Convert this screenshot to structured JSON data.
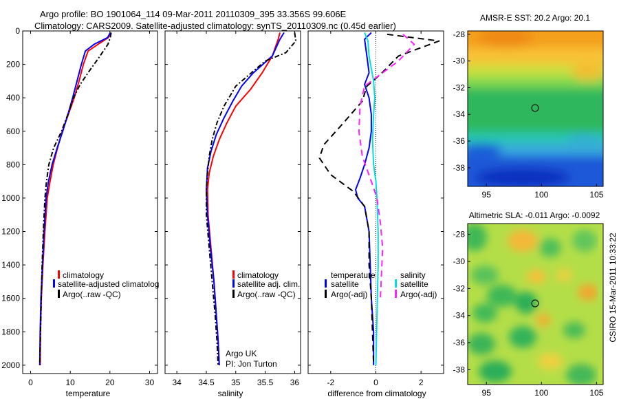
{
  "header": {
    "line1": "Argo profile: BO 1901064_114 09-Mar-2011 20110309_395 33.356S 99.606E",
    "line2": "Climatology: CARS2009. Satellite-adjusted climatology: synTS_20110309.nc (0.45d earlier)"
  },
  "credit": {
    "stamp": "CSIRO 15-Mar-2011 10:33:22",
    "argo_line1": "Argo UK",
    "argo_line2": "PI: Jon Turton"
  },
  "colors": {
    "climatology": "#ff0000",
    "satellite": "#0000ff",
    "argo": "#000000",
    "sat_salinity": "#00e0e0",
    "argo_salinity": "#ff22ff"
  },
  "chart_data": [
    {
      "id": "temperature",
      "type": "line",
      "xlabel": "temperature",
      "ylabel": "",
      "xlim": [
        -2,
        32
      ],
      "ylim": [
        0,
        2050
      ],
      "xticks": [
        0,
        10,
        20,
        30
      ],
      "yticks": [
        0,
        200,
        400,
        600,
        800,
        1000,
        1200,
        1400,
        1600,
        1800,
        2000
      ],
      "legend": [
        "climatology",
        "satellite-adjusted climatolog",
        "Argo(..raw -QC)"
      ],
      "series": [
        {
          "name": "climatology",
          "color": "#ff0000",
          "dash": "",
          "x": [
            20.2,
            19.6,
            17,
            14.5,
            13.3,
            12.2,
            11,
            9.5,
            8,
            6.8,
            5.7,
            4.9,
            4.2,
            3.6,
            3.1,
            2.7,
            2.5,
            2.4
          ],
          "y": [
            10,
            40,
            80,
            120,
            200,
            300,
            400,
            500,
            600,
            700,
            800,
            900,
            1000,
            1200,
            1400,
            1600,
            1800,
            2000
          ]
        },
        {
          "name": "satellite-adjusted climatolog",
          "color": "#0000ff",
          "dash": "",
          "x": [
            20.1,
            19.4,
            16,
            13.8,
            12.8,
            11.7,
            10.6,
            9.4,
            8.1,
            6.7,
            5.4,
            4.5,
            3.9,
            3.4,
            3.0,
            2.6,
            2.4,
            2.3
          ],
          "y": [
            10,
            40,
            80,
            120,
            200,
            300,
            400,
            500,
            600,
            700,
            800,
            900,
            1000,
            1200,
            1400,
            1600,
            1800,
            2000
          ]
        },
        {
          "name": "Argo(..raw -QC)",
          "color": "#000000",
          "dash": "7,3,2,3",
          "x": [
            20.3,
            20.1,
            19.5,
            17.5,
            14.5,
            12.5,
            10.8,
            9.7,
            7.8,
            5.8,
            4.6,
            4.0,
            3.6,
            3.2,
            2.9,
            2.5,
            2.3
          ],
          "y": [
            10,
            40,
            80,
            150,
            250,
            320,
            400,
            480,
            600,
            700,
            800,
            900,
            1000,
            1200,
            1400,
            1800,
            2000
          ]
        }
      ]
    },
    {
      "id": "salinity",
      "type": "line",
      "xlabel": "salinity",
      "xlim": [
        33.8,
        36.1
      ],
      "ylim": [
        0,
        2050
      ],
      "xticks": [
        34,
        34.5,
        35,
        35.5,
        36
      ],
      "legend": [
        "climatology",
        "satellite adj. clim.",
        "Argo(..raw -QC)"
      ],
      "series": [
        {
          "name": "climatology",
          "color": "#ff0000",
          "dash": "",
          "x": [
            35.75,
            35.72,
            35.62,
            35.45,
            35.25,
            35.0,
            34.85,
            34.72,
            34.62,
            34.55,
            34.52,
            34.53,
            34.58,
            34.63,
            34.67,
            34.7,
            34.72
          ],
          "y": [
            10,
            50,
            150,
            250,
            350,
            450,
            550,
            650,
            750,
            850,
            950,
            1100,
            1300,
            1500,
            1700,
            1850,
            2000
          ]
        },
        {
          "name": "satellite adj. clim.",
          "color": "#0000ff",
          "dash": "",
          "x": [
            35.82,
            35.75,
            35.62,
            35.3,
            35.1,
            34.95,
            34.8,
            34.67,
            34.58,
            34.52,
            34.5,
            34.52,
            34.57,
            34.63,
            34.67,
            34.7,
            34.72
          ],
          "y": [
            10,
            50,
            150,
            250,
            330,
            420,
            520,
            620,
            720,
            820,
            950,
            1100,
            1300,
            1500,
            1700,
            1850,
            2000
          ]
        },
        {
          "name": "Argo(..raw -QC)",
          "color": "#000000",
          "dash": "7,3,2,3",
          "x": [
            36.0,
            36.02,
            35.85,
            35.5,
            35.0,
            34.8,
            34.68,
            34.6,
            34.55,
            34.52,
            34.5,
            34.5,
            34.55,
            34.6,
            34.65,
            34.68,
            34.7
          ],
          "y": [
            10,
            60,
            130,
            180,
            330,
            450,
            550,
            650,
            750,
            850,
            950,
            1100,
            1300,
            1500,
            1700,
            1850,
            2000
          ]
        }
      ]
    },
    {
      "id": "difference",
      "type": "line",
      "xlabel": "difference from climatology",
      "xlim": [
        -3,
        3
      ],
      "ylim": [
        0,
        2050
      ],
      "xticks": [
        -2,
        0,
        2
      ],
      "legend_headers": [
        "temperature",
        "salinity"
      ],
      "legend": [
        "satellite",
        "Argo(-adj)",
        "satellite",
        "Argo(-adj)"
      ],
      "series": [
        {
          "name": "temperature satellite",
          "color": "#0000ff",
          "dash": "",
          "x": [
            -0.2,
            -0.5,
            -0.4,
            -0.3,
            -0.5,
            -0.3,
            -0.2,
            -0.2,
            -0.3,
            -0.5,
            -0.7,
            -0.9,
            -0.8,
            -0.5,
            -0.3,
            -0.25,
            -0.2,
            -0.1,
            -0.1
          ],
          "y": [
            10,
            50,
            150,
            250,
            320,
            400,
            500,
            600,
            700,
            800,
            880,
            950,
            1000,
            1050,
            1200,
            1400,
            1600,
            1800,
            2000
          ]
        },
        {
          "name": "temperature Argo(-adj)",
          "color": "#000000",
          "dash": "9,6",
          "x": [
            0.5,
            2.8,
            1.0,
            0.2,
            -0.4,
            -0.6,
            -1.5,
            -2.3,
            -2.5,
            -2.0,
            -1.0,
            -0.5,
            -0.3,
            -0.3,
            -0.2,
            -0.15,
            -0.1
          ],
          "y": [
            20,
            60,
            150,
            260,
            330,
            420,
            560,
            680,
            760,
            860,
            960,
            1050,
            1200,
            1400,
            1600,
            1800,
            2000
          ]
        },
        {
          "name": "salinity satellite",
          "color": "#00e0e0",
          "dash": "",
          "x": [
            -0.5,
            -0.35,
            -0.3,
            -0.1,
            -0.05,
            -0.1,
            -0.15,
            -0.1,
            0.0,
            0.05,
            0.1,
            0.1,
            0.05,
            0.0
          ],
          "y": [
            10,
            60,
            150,
            300,
            400,
            500,
            650,
            800,
            900,
            1000,
            1200,
            1400,
            1700,
            2000
          ]
        },
        {
          "name": "salinity Argo(-adj)",
          "color": "#ff22ff",
          "dash": "9,6",
          "x": [
            1.2,
            1.7,
            1.0,
            0.5,
            -0.5,
            -0.7,
            -0.75,
            -0.6,
            -0.2,
            0.05,
            0.2,
            0.3,
            0.25,
            0.2
          ],
          "y": [
            20,
            80,
            180,
            230,
            330,
            450,
            600,
            750,
            900,
            1000,
            1150,
            1300,
            1450,
            1600
          ]
        }
      ]
    },
    {
      "id": "sst-map",
      "type": "heatmap",
      "title": "AMSR-E SST: 20.2  Argo: 20.1",
      "xticks": [
        95,
        100,
        105
      ],
      "yticks": [
        -28,
        -30,
        -32,
        -34,
        -36,
        -38
      ]
    },
    {
      "id": "sla-map",
      "type": "heatmap",
      "title": "Altimetric SLA: -0.011  Argo: -0.0092",
      "xticks": [
        95,
        100,
        105
      ],
      "yticks": [
        -28,
        -30,
        -32,
        -34,
        -36,
        -38
      ]
    }
  ]
}
